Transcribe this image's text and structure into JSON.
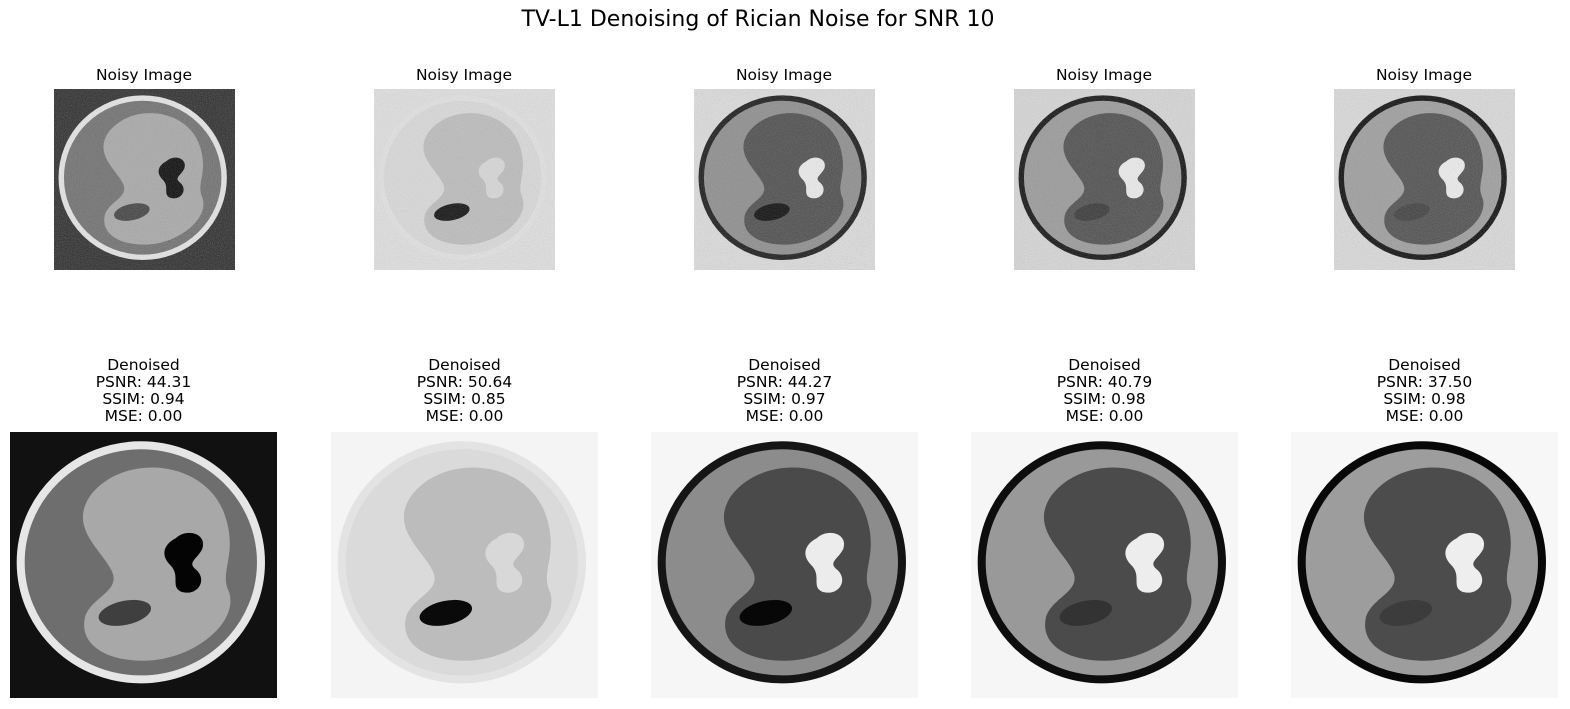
{
  "figure": {
    "title": "TV-L1 Denoising of Rician Noise for SNR 10"
  },
  "panels": [
    {
      "noisy_title": "Noisy Image",
      "denoised_title": "Denoised",
      "psnr": "PSNR: 44.31",
      "ssim": "SSIM: 0.94",
      "mse": "MSE: 0.00",
      "colors": {
        "bg": "#111111",
        "ring": "#e6e6e6",
        "body": "#6e6e6e",
        "lobe": "#a8a8a8",
        "small": "#040404",
        "ellipse": "#3f3f3f"
      },
      "noisy_bg": "#2a2a2a"
    },
    {
      "noisy_title": "Noisy Image",
      "denoised_title": "Denoised",
      "psnr": "PSNR: 50.64",
      "ssim": "SSIM: 0.85",
      "mse": "MSE: 0.00",
      "colors": {
        "bg": "#f4f4f4",
        "ring": "#e3e3e3",
        "body": "#dadada",
        "lobe": "#bcbcbc",
        "small": "#d8d8d8",
        "ellipse": "#0a0a0a"
      },
      "noisy_bg": "#e0e0e0"
    },
    {
      "noisy_title": "Noisy Image",
      "denoised_title": "Denoised",
      "psnr": "PSNR: 44.27",
      "ssim": "SSIM: 0.97",
      "mse": "MSE: 0.00",
      "colors": {
        "bg": "#f6f6f6",
        "ring": "#151515",
        "body": "#8c8c8c",
        "lobe": "#4a4a4a",
        "small": "#ececec",
        "ellipse": "#070707"
      },
      "noisy_bg": "#dcdcdc"
    },
    {
      "noisy_title": "Noisy Image",
      "denoised_title": "Denoised",
      "psnr": "PSNR: 40.79",
      "ssim": "SSIM: 0.98",
      "mse": "MSE: 0.00",
      "colors": {
        "bg": "#f6f6f6",
        "ring": "#0d0d0d",
        "body": "#999999",
        "lobe": "#4b4b4b",
        "small": "#ededed",
        "ellipse": "#333333"
      },
      "noisy_bg": "#d6d6d6"
    },
    {
      "noisy_title": "Noisy Image",
      "denoised_title": "Denoised",
      "psnr": "PSNR: 37.50",
      "ssim": "SSIM: 0.98",
      "mse": "MSE: 0.00",
      "colors": {
        "bg": "#f7f7f7",
        "ring": "#080808",
        "body": "#9d9d9d",
        "lobe": "#4c4c4c",
        "small": "#eeeeee",
        "ellipse": "#3c3c3c"
      },
      "noisy_bg": "#dadada"
    }
  ]
}
